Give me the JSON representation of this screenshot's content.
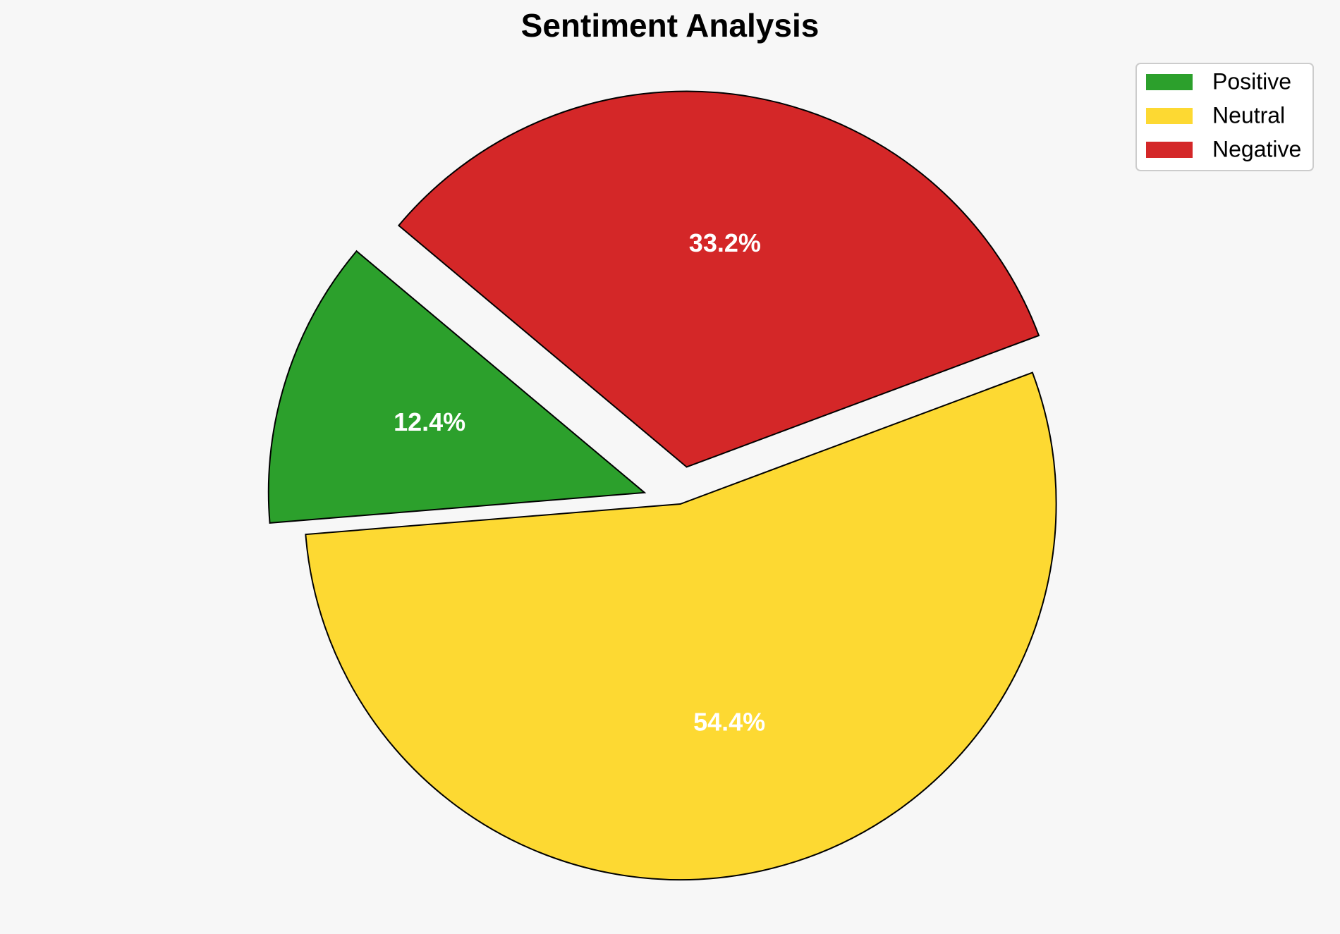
{
  "chart_data": {
    "type": "pie",
    "title": "Sentiment Analysis",
    "categories": [
      "Positive",
      "Neutral",
      "Negative"
    ],
    "values": [
      12.4,
      54.4,
      33.2
    ],
    "value_labels": [
      "12.4%",
      "54.4%",
      "33.2%"
    ],
    "colors": [
      "#2ca02c",
      "#fdd932",
      "#d42728"
    ],
    "explode": [
      0.1,
      0,
      0.1
    ],
    "start_angle": 140,
    "legend": "upper right"
  }
}
